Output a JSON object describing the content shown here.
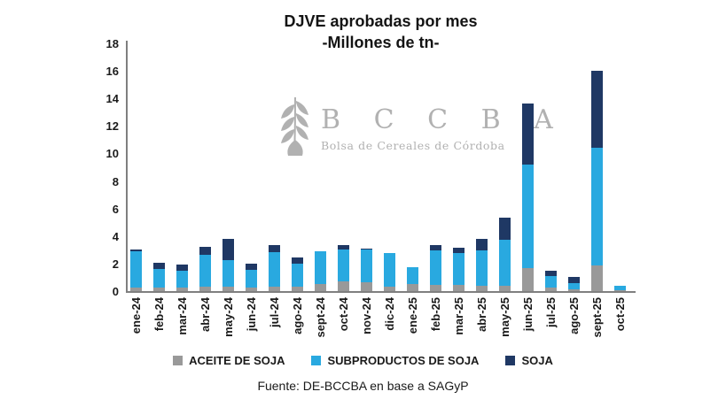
{
  "title": {
    "line1": "DJVE aprobadas por mes",
    "line2": "-Millones de tn-"
  },
  "watermark": {
    "icon": "wheat-leaf-icon",
    "acronym": "B C C B A",
    "subtitle": "Bolsa de Cereales de Córdoba",
    "color": "#b1b1b1"
  },
  "legend": [
    {
      "label": "ACEITE DE SOJA",
      "color": "#999999"
    },
    {
      "label": "SUBPRODUCTOS DE SOJA",
      "color": "#29a9e0"
    },
    {
      "label": "SOJA",
      "color": "#1f3864"
    }
  ],
  "caption": "Fuente: DE-BCCBA en base a SAGyP",
  "chart_data": {
    "type": "bar",
    "stacked": true,
    "title": "DJVE aprobadas por mes -Millones de tn-",
    "xlabel": "",
    "ylabel": "Millones de tn",
    "ylim": [
      0,
      18
    ],
    "ytick_step": 2,
    "grid": false,
    "legend_position": "bottom",
    "categories": [
      "ene-24",
      "feb-24",
      "mar-24",
      "abr-24",
      "may-24",
      "jun-24",
      "jul-24",
      "ago-24",
      "sept-24",
      "oct-24",
      "nov-24",
      "dic-24",
      "ene-25",
      "feb-25",
      "mar-25",
      "abr-25",
      "may-25",
      "jun-25",
      "jul-25",
      "ago-25",
      "sept-25",
      "oct-25"
    ],
    "series": [
      {
        "name": "ACEITE DE SOJA",
        "color": "#999999",
        "values": [
          0.25,
          0.25,
          0.25,
          0.3,
          0.3,
          0.25,
          0.3,
          0.3,
          0.5,
          0.7,
          0.65,
          0.3,
          0.5,
          0.45,
          0.45,
          0.4,
          0.4,
          1.7,
          0.25,
          0.1,
          1.85,
          0.05
        ]
      },
      {
        "name": "SUBPRODUCTOS DE SOJA",
        "color": "#29a9e0",
        "values": [
          2.65,
          1.35,
          1.25,
          2.35,
          1.95,
          1.3,
          2.5,
          1.7,
          2.4,
          2.35,
          2.35,
          2.45,
          1.25,
          2.5,
          2.3,
          2.55,
          3.35,
          7.5,
          0.85,
          0.5,
          8.55,
          0.35
        ]
      },
      {
        "name": "SOJA",
        "color": "#1f3864",
        "values": [
          0.1,
          0.45,
          0.4,
          0.55,
          1.55,
          0.45,
          0.55,
          0.45,
          0.0,
          0.3,
          0.1,
          0.0,
          0.0,
          0.4,
          0.4,
          0.85,
          1.6,
          4.4,
          0.4,
          0.4,
          5.6,
          0.0
        ]
      }
    ],
    "totals": [
      3.0,
      2.05,
      1.9,
      3.2,
      3.8,
      2.0,
      3.35,
      2.45,
      2.9,
      3.35,
      3.1,
      2.75,
      1.75,
      3.35,
      3.15,
      3.8,
      5.35,
      13.6,
      1.5,
      1.0,
      16.0,
      0.4
    ]
  }
}
